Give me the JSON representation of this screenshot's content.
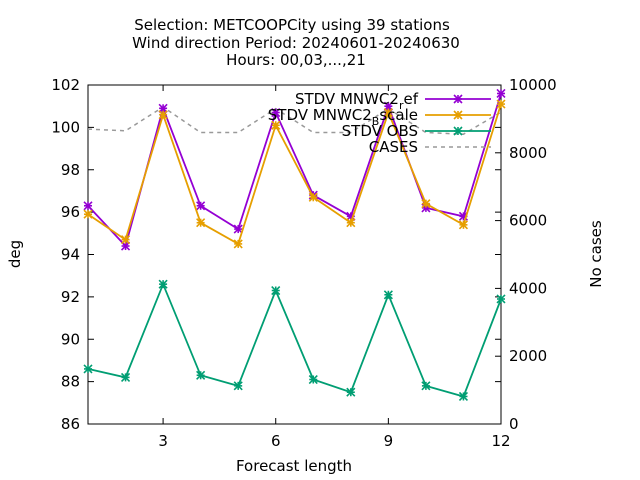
{
  "chart_data": {
    "type": "line",
    "title": [
      "Selection: METCOOPCity using    39 stations",
      "Wind direction   Period: 20240601-20240630",
      "Hours: 00,03,...,21"
    ],
    "xlabel": "Forecast length",
    "ylabel": "deg",
    "y2label": "No cases",
    "xlim": [
      1,
      12
    ],
    "ylim": [
      86,
      102
    ],
    "y2lim": [
      0,
      10000
    ],
    "xticks": [
      "3",
      "6",
      "9",
      "12"
    ],
    "yticks": [
      "86",
      "88",
      "90",
      "92",
      "94",
      "96",
      "98",
      "100",
      "102"
    ],
    "y2ticks": [
      "0",
      "2000",
      "4000",
      "6000",
      "8000",
      "10000"
    ],
    "x": [
      1,
      2,
      3,
      4,
      5,
      6,
      7,
      8,
      9,
      10,
      11,
      12
    ],
    "legend_position": "top-right",
    "grid": false,
    "series": [
      {
        "name": "STDV MNWC2_ref",
        "name_main": "STDV MNWC2",
        "name_sub": "r",
        "name_tail": "ef",
        "color": "#9400d3",
        "axis": "y1",
        "style": "line-points",
        "values": [
          96.3,
          94.4,
          100.9,
          96.3,
          95.2,
          100.7,
          96.8,
          95.8,
          101.0,
          96.2,
          95.8,
          101.6
        ]
      },
      {
        "name": "STDV MNWC2_Bscale",
        "name_main": "STDV MNWC2",
        "name_sub": "B",
        "name_tail": "scale",
        "color": "#e69f00",
        "axis": "y1",
        "style": "line-points",
        "values": [
          95.9,
          94.7,
          100.6,
          95.5,
          94.5,
          100.1,
          96.7,
          95.5,
          100.7,
          96.4,
          95.4,
          101.1
        ]
      },
      {
        "name": "STDV OBS",
        "color": "#009e73",
        "axis": "y1",
        "style": "line-points",
        "values": [
          88.6,
          88.2,
          92.6,
          88.3,
          87.8,
          92.3,
          88.1,
          87.5,
          92.1,
          87.8,
          87.3,
          91.9
        ]
      },
      {
        "name": "CASES",
        "color": "#999999",
        "axis": "y2",
        "style": "dashed",
        "values": [
          8700,
          8650,
          9350,
          8600,
          8600,
          9300,
          8600,
          8600,
          9300,
          8600,
          8550,
          9200
        ]
      }
    ]
  }
}
